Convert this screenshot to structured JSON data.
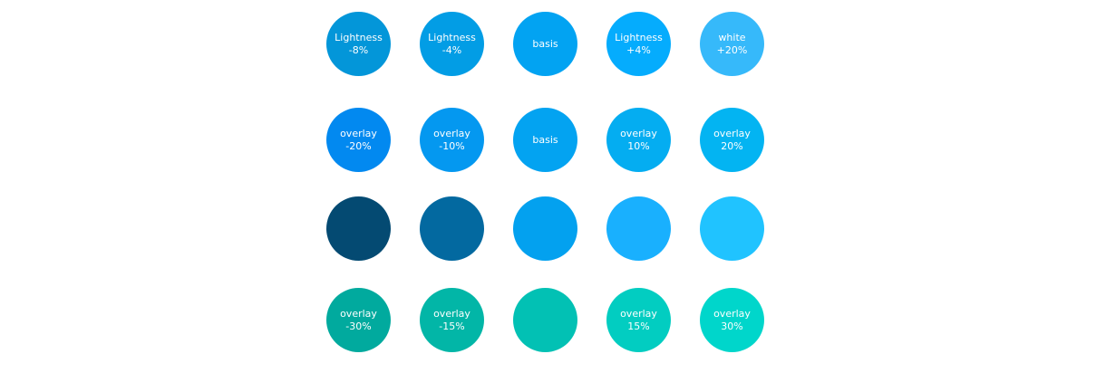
{
  "rows": [
    [
      {
        "line1": "Lightness",
        "line2": "-8%",
        "color": "#0396D9"
      },
      {
        "line1": "Lightness",
        "line2": "-4%",
        "color": "#029DE5"
      },
      {
        "line1": "basis",
        "line2": "",
        "color": "#02A3F2"
      },
      {
        "line1": "Lightness",
        "line2": "+4%",
        "color": "#05ACFD"
      },
      {
        "line1": "white",
        "line2": "+20%",
        "color": "#36B9FA"
      }
    ],
    [
      {
        "line1": "overlay",
        "line2": "-20%",
        "color": "#0289F0"
      },
      {
        "line1": "overlay",
        "line2": "-10%",
        "color": "#0498F0"
      },
      {
        "line1": "basis",
        "line2": "",
        "color": "#03A3F1"
      },
      {
        "line1": "overlay",
        "line2": "10%",
        "color": "#04ADF1"
      },
      {
        "line1": "overlay",
        "line2": "20%",
        "color": "#03B4F2"
      }
    ],
    [
      {
        "line1": "",
        "line2": "",
        "color": "#044A72"
      },
      {
        "line1": "",
        "line2": "",
        "color": "#0369A0"
      },
      {
        "line1": "",
        "line2": "",
        "color": "#03A1EF"
      },
      {
        "line1": "",
        "line2": "",
        "color": "#19B0FE"
      },
      {
        "line1": "",
        "line2": "",
        "color": "#20C3FF"
      }
    ],
    [
      {
        "line1": "overlay",
        "line2": "-30%",
        "color": "#01AA9E"
      },
      {
        "line1": "overlay",
        "line2": "-15%",
        "color": "#02B6A7"
      },
      {
        "line1": "",
        "line2": "",
        "color": "#02C1B4"
      },
      {
        "line1": "overlay",
        "line2": "15%",
        "color": "#02CDC1"
      },
      {
        "line1": "overlay",
        "line2": "30%",
        "color": "#00D6CB"
      }
    ]
  ]
}
